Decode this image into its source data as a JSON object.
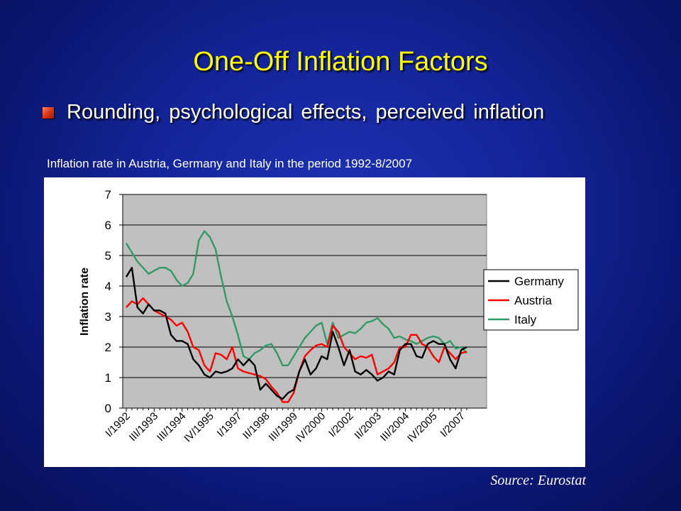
{
  "slide": {
    "title": "One-Off Inflation Factors",
    "bullet": "Rounding, psychological effects, perceived inflation",
    "caption": "Inflation rate in Austria, Germany and Italy in the period 1992-8/2007",
    "source": "Source: Eurostat"
  },
  "chart_data": {
    "type": "line",
    "title": "",
    "xlabel": "",
    "ylabel": "Inflation rate",
    "ylim": [
      0,
      7
    ],
    "yticks": [
      0,
      1,
      2,
      3,
      4,
      5,
      6,
      7
    ],
    "x_tick_labels": [
      "I/1992",
      "III/1993",
      "III/1994",
      "IV/1995",
      "I/1997",
      "II/1998",
      "III/1999",
      "IV/2000",
      "I/2002",
      "II/2003",
      "III/2004",
      "IV/2005",
      "I/2007"
    ],
    "grid": "horizontal",
    "legend_position": "right",
    "series": [
      {
        "name": "Germany",
        "color": "#000000",
        "values": [
          4.3,
          4.6,
          3.3,
          3.1,
          3.4,
          3.2,
          3.2,
          3.1,
          2.4,
          2.2,
          2.2,
          2.1,
          1.6,
          1.4,
          1.1,
          1.0,
          1.2,
          1.15,
          1.2,
          1.3,
          1.6,
          1.4,
          1.6,
          1.4,
          0.6,
          0.8,
          0.6,
          0.4,
          0.3,
          0.5,
          0.6,
          1.2,
          1.6,
          1.1,
          1.3,
          1.7,
          1.6,
          2.5,
          2.0,
          1.4,
          1.9,
          1.2,
          1.1,
          1.25,
          1.1,
          0.9,
          1.0,
          1.2,
          1.1,
          1.9,
          2.1,
          2.1,
          1.7,
          1.65,
          2.1,
          2.2,
          2.1,
          2.1,
          1.6,
          1.3,
          1.9,
          2.0
        ]
      },
      {
        "name": "Austria",
        "color": "#ff0000",
        "values": [
          3.3,
          3.5,
          3.4,
          3.6,
          3.4,
          3.2,
          3.1,
          3.0,
          2.9,
          2.7,
          2.8,
          2.5,
          2.0,
          1.9,
          1.4,
          1.2,
          1.8,
          1.75,
          1.6,
          2.0,
          1.3,
          1.2,
          1.15,
          1.1,
          1.05,
          0.95,
          0.7,
          0.5,
          0.2,
          0.2,
          0.5,
          1.2,
          1.7,
          1.9,
          2.05,
          2.1,
          2.0,
          2.7,
          2.5,
          2.0,
          1.8,
          1.6,
          1.7,
          1.65,
          1.75,
          1.1,
          1.2,
          1.3,
          1.5,
          2.0,
          2.0,
          2.4,
          2.4,
          2.1,
          2.0,
          1.7,
          1.5,
          2.0,
          1.8,
          1.6,
          1.8,
          1.85
        ]
      },
      {
        "name": "Italy",
        "color": "#339966",
        "values": [
          5.4,
          5.1,
          4.8,
          4.6,
          4.4,
          4.5,
          4.6,
          4.6,
          4.5,
          4.2,
          4.0,
          4.1,
          4.4,
          5.5,
          5.8,
          5.6,
          5.2,
          4.3,
          3.5,
          3.0,
          2.4,
          1.7,
          1.6,
          1.8,
          1.9,
          2.05,
          2.1,
          1.8,
          1.4,
          1.4,
          1.7,
          2.0,
          2.3,
          2.5,
          2.7,
          2.8,
          2.1,
          2.8,
          2.3,
          2.4,
          2.5,
          2.45,
          2.6,
          2.8,
          2.85,
          2.95,
          2.75,
          2.6,
          2.3,
          2.35,
          2.25,
          2.2,
          2.1,
          2.2,
          2.3,
          2.35,
          2.3,
          2.1,
          2.2,
          1.95,
          2.0,
          1.8
        ]
      }
    ]
  }
}
